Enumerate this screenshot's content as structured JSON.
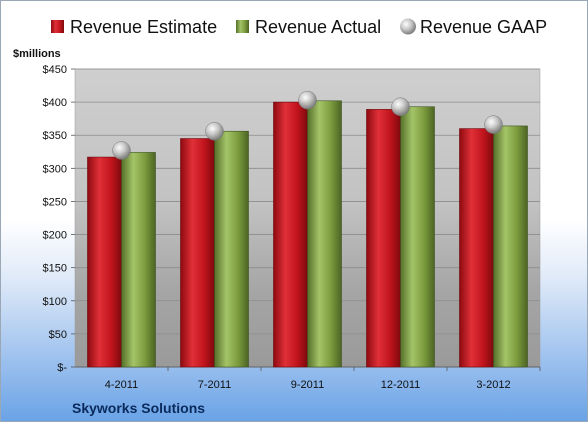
{
  "chart_data": {
    "type": "bar",
    "unit_label": "$millions",
    "company": "Skyworks Solutions",
    "categories": [
      "4-2011",
      "7-2011",
      "9-2011",
      "12-2011",
      "3-2012"
    ],
    "y_ticks": [
      "$-",
      "$50",
      "$100",
      "$150",
      "$200",
      "$250",
      "$300",
      "$350",
      "$400",
      "$450"
    ],
    "ylim": [
      0,
      450
    ],
    "grid": true,
    "legend_position": "top",
    "series": [
      {
        "name": "Revenue Estimate",
        "kind": "bar",
        "color": "#c0141c",
        "values": [
          317,
          345,
          400,
          389,
          360
        ]
      },
      {
        "name": "Revenue Actual",
        "kind": "bar",
        "color": "#7a9a3c",
        "values": [
          324,
          356,
          402,
          393,
          364
        ]
      },
      {
        "name": "Revenue GAAP",
        "kind": "marker",
        "color": "#b8b8b8",
        "values": [
          327,
          356,
          403,
          393,
          366
        ]
      }
    ]
  }
}
